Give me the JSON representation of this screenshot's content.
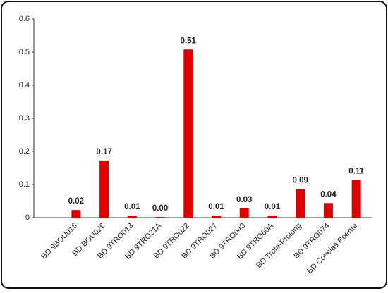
{
  "chart_data": {
    "type": "bar",
    "categories": [
      "BD 9BOU016",
      "BD BOU026",
      "BD 9TRO013",
      "BD 9TRO21A",
      "BD 9TRO022",
      "BD 9TRO027",
      "BD 9TRO040",
      "BD 9TRO60A",
      "BD Trofa-Prolong",
      "BD 9TRO074",
      "BD Covelas Poente"
    ],
    "values": [
      0.023,
      0.172,
      0.006,
      0.002,
      0.508,
      0.006,
      0.028,
      0.006,
      0.086,
      0.044,
      0.114
    ],
    "value_labels": [
      "0.02",
      "0.17",
      "0.01",
      "0.00",
      "0.51",
      "0.01",
      "0.03",
      "0.01",
      "0.09",
      "0.04",
      "0.11"
    ],
    "color": "#e00000",
    "ylim": [
      0,
      0.6
    ],
    "yticks": [
      0,
      0.1,
      0.2,
      0.3,
      0.4,
      0.5,
      0.6
    ]
  }
}
